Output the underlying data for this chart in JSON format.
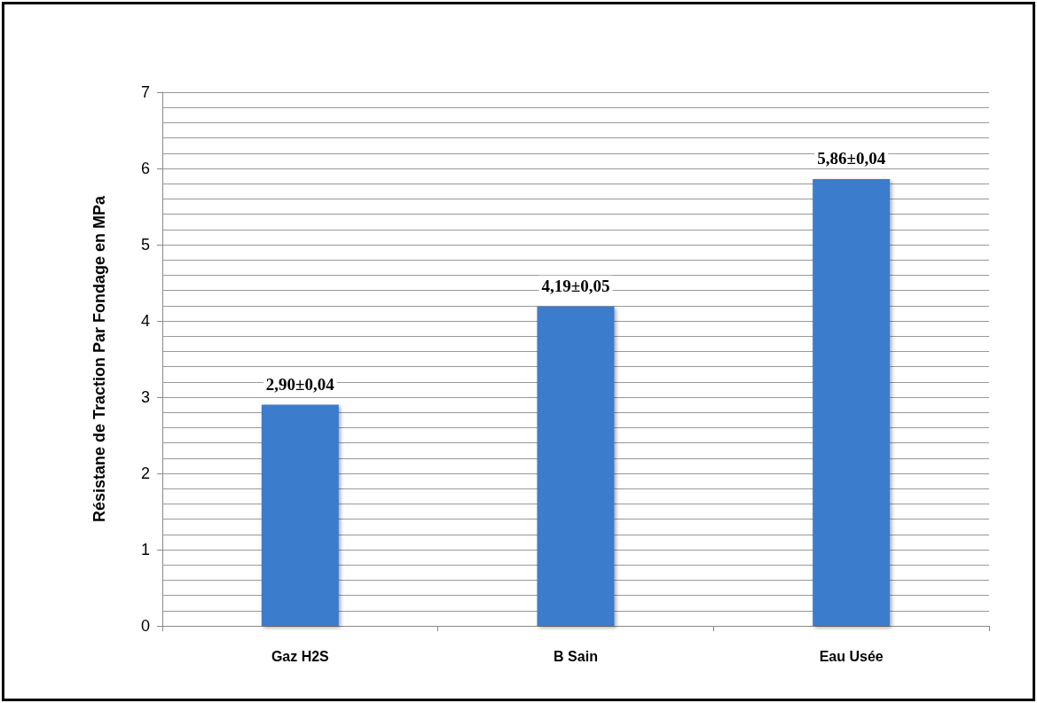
{
  "chart_data": {
    "type": "bar",
    "ylabel": "Résistane de Traction Par Fondage en MPa",
    "categories": [
      "Gaz H2S",
      "B Sain",
      "Eau Usée"
    ],
    "values": [
      2.9,
      4.19,
      5.86
    ],
    "value_labels": [
      "2,90±0,04",
      "4,19±0,05",
      "5,86±0,04"
    ],
    "color": "#3b7bcc",
    "ylim": [
      0,
      7
    ],
    "yticks": [
      0,
      {
        "value": 0.2,
        "label": null
      },
      {
        "value": 0.4,
        "label": null
      },
      {
        "value": 0.6,
        "label": null
      },
      {
        "value": 0.8,
        "label": null
      },
      1,
      {
        "value": 1.2,
        "label": null
      },
      {
        "value": 1.4,
        "label": null
      },
      {
        "value": 1.6,
        "label": null
      },
      {
        "value": 1.8,
        "label": null
      },
      2,
      {
        "value": 2.2,
        "label": null
      },
      {
        "value": 2.4,
        "label": null
      },
      {
        "value": 2.6,
        "label": null
      },
      {
        "value": 2.8,
        "label": null
      },
      3,
      {
        "value": 3.2,
        "label": null
      },
      {
        "value": 3.4,
        "label": null
      },
      {
        "value": 3.6,
        "label": null
      },
      {
        "value": 3.8,
        "label": null
      },
      4,
      {
        "value": 4.2,
        "label": null
      },
      {
        "value": 4.4,
        "label": null
      },
      {
        "value": 4.6,
        "label": null
      },
      {
        "value": 4.8,
        "label": null
      },
      5,
      {
        "value": 5.2,
        "label": null
      },
      {
        "value": 5.4,
        "label": null
      },
      {
        "value": 5.6,
        "label": null
      },
      {
        "value": 5.8,
        "label": null
      },
      6,
      {
        "value": 6.2,
        "label": null
      },
      {
        "value": 6.4,
        "label": null
      },
      {
        "value": 6.6,
        "label": null
      },
      {
        "value": 6.8,
        "label": null
      },
      7
    ],
    "grid": true
  }
}
